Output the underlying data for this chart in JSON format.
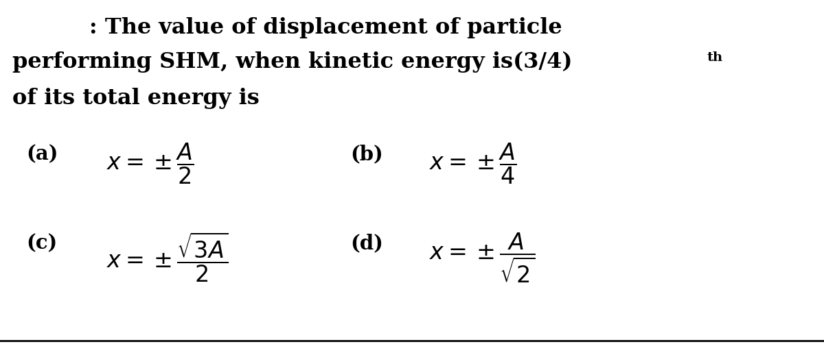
{
  "bg_color": "#ffffff",
  "text_color": "#000000",
  "line_color": "#000000",
  "figsize": [
    12.0,
    5.15
  ],
  "dpi": 100,
  "title_line1": ": The value of displacement of particle",
  "title_line2_main": "performing SHM, when kinetic energy is(3/4)",
  "title_line2_sup": "th",
  "title_line3": "of its total energy is",
  "opt_a_label": "(a)",
  "opt_a_math": "$x = \\pm\\dfrac{A}{2}$",
  "opt_b_label": "(b)",
  "opt_b_math": "$x = \\pm\\dfrac{A}{4}$",
  "opt_c_label": "(c)",
  "opt_c_math": "$x = \\pm\\dfrac{\\sqrt{3A}}{2}$",
  "opt_d_label": "(d)",
  "opt_d_math": "$x = \\pm\\dfrac{A}{\\sqrt{2}}$"
}
